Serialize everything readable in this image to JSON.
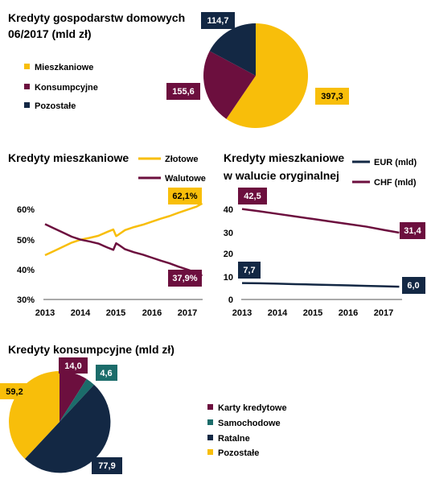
{
  "colors": {
    "yellow": "#F8BE0A",
    "maroon": "#6C0F3E",
    "navy": "#132844",
    "teal": "#1B6C6A"
  },
  "chart_data": [
    {
      "type": "pie",
      "title": "Kredyty gospodarstw domowych 06/2017 (mld zł)",
      "title_lines": [
        "Kredyty gospodarstw domowych",
        "06/2017 (mld zł)"
      ],
      "legend_position": "left",
      "slices": [
        {
          "name": "Mieszkaniowe",
          "value": 397.3,
          "label": "397,3",
          "color": "#F8BE0A"
        },
        {
          "name": "Konsumpcyjne",
          "value": 155.6,
          "label": "155,6",
          "color": "#6C0F3E"
        },
        {
          "name": "Pozostałe",
          "value": 114.7,
          "label": "114,7",
          "color": "#132844"
        }
      ]
    },
    {
      "type": "line",
      "title": "Kredyty mieszkaniowe",
      "x_ticks": [
        "2013",
        "2014",
        "2015",
        "2016",
        "2017"
      ],
      "y_ticks": [
        "30%",
        "40%",
        "50%",
        "60%"
      ],
      "xlim": [
        2013,
        2017.5
      ],
      "ylim": [
        30,
        65
      ],
      "grid": false,
      "legend_position": "top-right",
      "series": [
        {
          "name": "Złotowe",
          "color": "#F8BE0A",
          "end_label": "62,1%",
          "points": [
            [
              2013.0,
              44.8
            ],
            [
              2013.25,
              46.2
            ],
            [
              2013.5,
              47.6
            ],
            [
              2013.75,
              49.0
            ],
            [
              2014.0,
              50.0
            ],
            [
              2014.25,
              50.6
            ],
            [
              2014.5,
              51.3
            ],
            [
              2014.75,
              52.6
            ],
            [
              2014.92,
              53.4
            ],
            [
              2015.0,
              51.2
            ],
            [
              2015.08,
              51.8
            ],
            [
              2015.25,
              53.2
            ],
            [
              2015.5,
              54.2
            ],
            [
              2015.75,
              55.0
            ],
            [
              2016.0,
              56.0
            ],
            [
              2016.25,
              57.0
            ],
            [
              2016.5,
              57.9
            ],
            [
              2016.75,
              59.0
            ],
            [
              2017.0,
              60.0
            ],
            [
              2017.25,
              61.0
            ],
            [
              2017.42,
              62.1
            ]
          ]
        },
        {
          "name": "Walutowe",
          "color": "#6C0F3E",
          "end_label": "37,9%",
          "points": [
            [
              2013.0,
              55.2
            ],
            [
              2013.25,
              53.8
            ],
            [
              2013.5,
              52.4
            ],
            [
              2013.75,
              51.0
            ],
            [
              2014.0,
              50.0
            ],
            [
              2014.25,
              49.4
            ],
            [
              2014.5,
              48.7
            ],
            [
              2014.75,
              47.4
            ],
            [
              2014.92,
              46.6
            ],
            [
              2015.0,
              48.8
            ],
            [
              2015.08,
              48.2
            ],
            [
              2015.25,
              46.8
            ],
            [
              2015.5,
              45.8
            ],
            [
              2015.75,
              45.0
            ],
            [
              2016.0,
              44.0
            ],
            [
              2016.25,
              43.0
            ],
            [
              2016.5,
              42.1
            ],
            [
              2016.75,
              41.0
            ],
            [
              2017.0,
              40.0
            ],
            [
              2017.25,
              39.0
            ],
            [
              2017.42,
              37.9
            ]
          ]
        }
      ]
    },
    {
      "type": "line",
      "title": "Kredyty mieszkaniowe w walucie oryginalnej",
      "title_lines": [
        "Kredyty mieszkaniowe",
        "w walucie oryginalnej"
      ],
      "x_ticks": [
        "2013",
        "2014",
        "2015",
        "2016",
        "2017"
      ],
      "y_ticks": [
        "0",
        "10",
        "20",
        "30",
        "40"
      ],
      "xlim": [
        2013,
        2017.5
      ],
      "ylim": [
        0,
        45
      ],
      "grid": false,
      "legend_position": "top-right",
      "series": [
        {
          "name": "EUR (mld)",
          "color": "#132844",
          "start_label": "7,7",
          "end_label": "6,0",
          "points": [
            [
              2013.0,
              7.7
            ],
            [
              2013.5,
              7.6
            ],
            [
              2014.0,
              7.4
            ],
            [
              2014.5,
              7.2
            ],
            [
              2015.0,
              7.0
            ],
            [
              2015.5,
              6.8
            ],
            [
              2016.0,
              6.6
            ],
            [
              2016.5,
              6.4
            ],
            [
              2017.0,
              6.2
            ],
            [
              2017.42,
              6.0
            ]
          ]
        },
        {
          "name": "CHF (mld)",
          "color": "#6C0F3E",
          "start_label": "42,5",
          "end_label": "31,4",
          "points": [
            [
              2013.0,
              42.5
            ],
            [
              2013.5,
              41.4
            ],
            [
              2014.0,
              40.2
            ],
            [
              2014.5,
              39.0
            ],
            [
              2015.0,
              37.8
            ],
            [
              2015.5,
              36.6
            ],
            [
              2016.0,
              35.4
            ],
            [
              2016.5,
              34.2
            ],
            [
              2017.0,
              32.6
            ],
            [
              2017.42,
              31.4
            ]
          ]
        }
      ]
    },
    {
      "type": "pie",
      "title": "Kredyty konsumpcyjne (mld zł)",
      "legend_position": "right",
      "slices": [
        {
          "name": "Karty kredytowe",
          "value": 14.0,
          "label": "14,0",
          "color": "#6C0F3E"
        },
        {
          "name": "Samochodowe",
          "value": 4.6,
          "label": "4,6",
          "color": "#1B6C6A"
        },
        {
          "name": "Ratalne",
          "value": 77.9,
          "label": "77,9",
          "color": "#132844"
        },
        {
          "name": "Pozostałe",
          "value": 59.2,
          "label": "59,2",
          "color": "#F8BE0A"
        }
      ]
    }
  ]
}
